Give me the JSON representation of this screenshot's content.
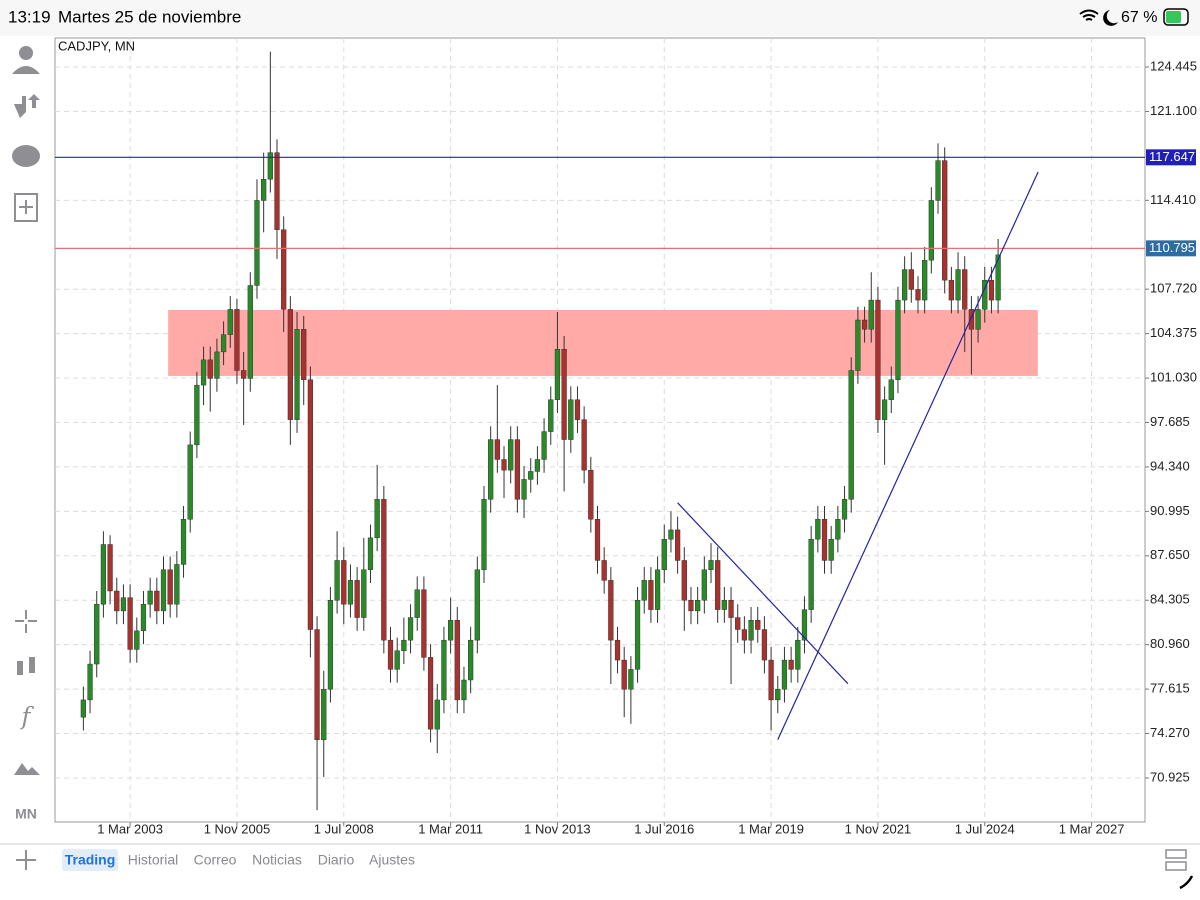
{
  "status_bar": {
    "time": "13:19",
    "date": "Martes 25 de noviembre",
    "battery": "67 %"
  },
  "toolbar": {
    "timeframe": "MN"
  },
  "tabs": [
    "Trading",
    "Historial",
    "Correo",
    "Noticias",
    "Diario",
    "Ajustes"
  ],
  "chart_data": {
    "type": "candlestick",
    "title": "CADJPY, MN",
    "x": [
      0,
      2,
      4,
      6,
      8,
      10,
      12,
      14,
      16,
      18,
      20,
      22,
      24,
      26,
      28,
      30,
      32,
      34,
      36,
      38,
      40,
      42,
      44,
      46,
      48,
      50,
      52,
      54,
      56,
      58,
      60,
      62,
      64,
      66,
      68,
      70,
      72,
      74,
      76,
      78,
      80,
      82,
      84,
      86,
      88,
      90,
      92,
      94,
      96,
      98,
      100,
      102,
      104,
      106,
      108,
      110,
      112,
      114,
      116,
      118,
      120,
      122,
      124,
      126,
      128,
      130,
      132,
      134,
      136,
      138,
      140,
      142,
      144,
      146,
      148,
      150,
      152,
      154,
      156,
      158,
      160,
      162,
      164,
      166,
      168,
      170,
      172,
      174,
      176,
      178,
      180,
      182,
      184,
      186,
      188,
      190,
      192,
      194,
      196,
      198,
      200,
      202,
      204,
      206,
      208,
      210,
      212,
      214,
      216,
      218,
      220,
      222,
      224,
      226,
      228,
      230,
      232,
      234,
      236,
      238,
      240,
      242,
      244,
      246,
      248,
      250,
      252,
      254,
      256,
      258,
      260,
      262,
      264,
      266,
      268,
      270,
      272,
      274
    ],
    "ohlc": [
      [
        75.5,
        77.8,
        74.5,
        76.8
      ],
      [
        76.8,
        80.5,
        75.8,
        79.5
      ],
      [
        79.5,
        85.0,
        78.5,
        84.0
      ],
      [
        84.0,
        89.5,
        83.0,
        88.5
      ],
      [
        88.5,
        89.2,
        84.0,
        85.0
      ],
      [
        85.0,
        86.0,
        82.5,
        83.5
      ],
      [
        83.5,
        85.5,
        82.5,
        84.5
      ],
      [
        84.5,
        85.5,
        79.6,
        80.6
      ],
      [
        80.6,
        83.0,
        79.6,
        82.0
      ],
      [
        82.0,
        85.0,
        81.0,
        84.0
      ],
      [
        84.0,
        86.0,
        83.0,
        85.0
      ],
      [
        85.0,
        86.0,
        82.5,
        83.5
      ],
      [
        83.5,
        87.6,
        82.5,
        86.6
      ],
      [
        86.6,
        87.6,
        83.0,
        84.0
      ],
      [
        84.0,
        88.0,
        83.0,
        87.0
      ],
      [
        87.0,
        91.4,
        86.0,
        90.4
      ],
      [
        90.4,
        97.0,
        89.4,
        96.0
      ],
      [
        96.0,
        101.5,
        95.0,
        100.5
      ],
      [
        100.5,
        103.4,
        99.0,
        102.4
      ],
      [
        102.4,
        103.4,
        98.5,
        101.0
      ],
      [
        101.0,
        104.0,
        100.0,
        103.0
      ],
      [
        103.0,
        105.3,
        102.0,
        104.3
      ],
      [
        104.3,
        107.2,
        103.3,
        106.2
      ],
      [
        106.2,
        107.0,
        100.6,
        101.6
      ],
      [
        101.6,
        103.0,
        97.5,
        101.0
      ],
      [
        101.0,
        109.0,
        100.0,
        108.0
      ],
      [
        108.0,
        116.0,
        107.0,
        114.4
      ],
      [
        114.4,
        118.0,
        112.0,
        116.0
      ],
      [
        116.0,
        125.6,
        115.0,
        118.0
      ],
      [
        118.0,
        119.0,
        110.0,
        112.2
      ],
      [
        112.2,
        113.2,
        104.5,
        106.2
      ],
      [
        106.2,
        107.2,
        96.0,
        97.9
      ],
      [
        97.9,
        106.0,
        96.9,
        104.7
      ],
      [
        104.7,
        105.7,
        99.0,
        100.9
      ],
      [
        100.9,
        101.9,
        80.0,
        82.1
      ],
      [
        82.1,
        83.1,
        68.5,
        73.8
      ],
      [
        73.8,
        79.0,
        71.0,
        77.6
      ],
      [
        77.6,
        85.3,
        76.6,
        84.3
      ],
      [
        84.3,
        89.5,
        83.3,
        87.3
      ],
      [
        87.3,
        88.3,
        82.5,
        84.0
      ],
      [
        84.0,
        87.0,
        83.0,
        85.8
      ],
      [
        85.8,
        86.8,
        82.0,
        83.0
      ],
      [
        83.0,
        89.0,
        82.0,
        86.6
      ],
      [
        86.6,
        90.0,
        85.6,
        89.0
      ],
      [
        89.0,
        94.5,
        88.0,
        91.9
      ],
      [
        91.9,
        92.9,
        80.3,
        81.3
      ],
      [
        81.3,
        82.3,
        78.1,
        79.1
      ],
      [
        79.1,
        81.5,
        78.1,
        80.5
      ],
      [
        80.5,
        83.0,
        79.5,
        81.3
      ],
      [
        81.3,
        84.0,
        80.3,
        83.0
      ],
      [
        83.0,
        86.1,
        82.0,
        85.1
      ],
      [
        85.1,
        86.1,
        79.0,
        80.0
      ],
      [
        80.0,
        81.0,
        73.6,
        74.6
      ],
      [
        74.6,
        78.0,
        72.8,
        76.8
      ],
      [
        76.8,
        82.3,
        75.8,
        81.3
      ],
      [
        81.3,
        84.5,
        80.3,
        82.8
      ],
      [
        82.8,
        83.8,
        75.8,
        76.8
      ],
      [
        76.8,
        79.3,
        75.8,
        78.3
      ],
      [
        78.3,
        82.3,
        77.3,
        81.3
      ],
      [
        81.3,
        87.6,
        80.3,
        86.6
      ],
      [
        86.6,
        92.9,
        85.6,
        91.9
      ],
      [
        91.9,
        97.4,
        90.9,
        96.4
      ],
      [
        96.4,
        100.5,
        93.9,
        94.9
      ],
      [
        94.9,
        95.9,
        92.0,
        94.1
      ],
      [
        94.1,
        97.4,
        93.1,
        96.4
      ],
      [
        96.4,
        97.4,
        90.9,
        91.9
      ],
      [
        91.9,
        94.4,
        90.5,
        93.4
      ],
      [
        93.4,
        95.0,
        92.4,
        94.0
      ],
      [
        94.0,
        95.9,
        93.0,
        94.9
      ],
      [
        94.9,
        98.0,
        93.9,
        97.0
      ],
      [
        97.0,
        100.4,
        96.0,
        99.4
      ],
      [
        99.4,
        106.0,
        98.4,
        103.2
      ],
      [
        103.2,
        104.2,
        92.5,
        96.4
      ],
      [
        96.4,
        100.4,
        95.4,
        99.4
      ],
      [
        99.4,
        100.4,
        96.9,
        97.9
      ],
      [
        97.9,
        98.9,
        93.1,
        94.1
      ],
      [
        94.1,
        95.1,
        89.4,
        90.4
      ],
      [
        90.4,
        91.4,
        86.3,
        87.3
      ],
      [
        87.3,
        88.3,
        84.8,
        85.8
      ],
      [
        85.8,
        86.8,
        78.0,
        81.3
      ],
      [
        81.3,
        82.3,
        78.8,
        79.8
      ],
      [
        79.8,
        80.8,
        75.5,
        77.6
      ],
      [
        77.6,
        80.1,
        75.0,
        79.1
      ],
      [
        79.1,
        85.3,
        78.1,
        84.3
      ],
      [
        84.3,
        86.8,
        83.3,
        85.8
      ],
      [
        85.8,
        86.8,
        82.6,
        83.6
      ],
      [
        83.6,
        87.6,
        82.6,
        86.6
      ],
      [
        86.6,
        90.0,
        85.6,
        88.9
      ],
      [
        88.9,
        91.0,
        87.9,
        89.6
      ],
      [
        89.6,
        90.6,
        86.3,
        87.3
      ],
      [
        87.3,
        88.3,
        82.0,
        84.3
      ],
      [
        84.3,
        85.3,
        82.5,
        83.5
      ],
      [
        83.5,
        85.3,
        82.5,
        84.3
      ],
      [
        84.3,
        87.6,
        83.3,
        86.6
      ],
      [
        86.6,
        88.6,
        85.6,
        87.3
      ],
      [
        87.3,
        88.3,
        82.6,
        83.6
      ],
      [
        83.6,
        85.3,
        82.6,
        84.3
      ],
      [
        84.3,
        85.3,
        78.0,
        83.0
      ],
      [
        83.0,
        84.0,
        81.1,
        82.1
      ],
      [
        82.1,
        83.1,
        80.3,
        81.3
      ],
      [
        81.3,
        83.8,
        80.3,
        82.8
      ],
      [
        82.8,
        83.8,
        81.1,
        82.1
      ],
      [
        82.1,
        83.1,
        78.8,
        79.8
      ],
      [
        79.8,
        80.8,
        74.5,
        76.8
      ],
      [
        76.8,
        78.6,
        75.8,
        77.6
      ],
      [
        77.6,
        80.8,
        76.6,
        79.8
      ],
      [
        79.8,
        80.8,
        78.1,
        79.1
      ],
      [
        79.1,
        82.3,
        78.1,
        81.3
      ],
      [
        81.3,
        84.6,
        80.3,
        83.6
      ],
      [
        83.6,
        89.9,
        82.6,
        88.9
      ],
      [
        88.9,
        91.4,
        87.9,
        90.4
      ],
      [
        90.4,
        91.4,
        86.3,
        87.3
      ],
      [
        87.3,
        89.9,
        86.3,
        88.9
      ],
      [
        88.9,
        91.4,
        87.9,
        90.4
      ],
      [
        90.4,
        92.9,
        89.4,
        91.9
      ],
      [
        91.9,
        102.6,
        90.9,
        101.6
      ],
      [
        101.6,
        106.4,
        100.6,
        105.4
      ],
      [
        105.4,
        106.4,
        103.7,
        104.7
      ],
      [
        104.7,
        109.0,
        103.7,
        106.9
      ],
      [
        106.9,
        107.9,
        96.9,
        97.9
      ],
      [
        97.9,
        100.4,
        94.5,
        99.4
      ],
      [
        99.4,
        101.9,
        98.4,
        100.9
      ],
      [
        100.9,
        107.9,
        99.9,
        106.9
      ],
      [
        106.9,
        110.2,
        105.9,
        109.2
      ],
      [
        109.2,
        110.5,
        106.7,
        107.7
      ],
      [
        107.7,
        108.7,
        105.9,
        106.9
      ],
      [
        106.9,
        110.9,
        105.9,
        109.9
      ],
      [
        109.9,
        115.4,
        108.9,
        114.4
      ],
      [
        114.4,
        118.7,
        113.4,
        117.4
      ],
      [
        117.4,
        118.4,
        107.4,
        108.4
      ],
      [
        108.4,
        109.4,
        105.9,
        106.9
      ],
      [
        106.9,
        110.5,
        105.9,
        109.2
      ],
      [
        109.2,
        110.2,
        103.0,
        106.2
      ],
      [
        106.2,
        107.2,
        101.3,
        104.7
      ],
      [
        104.7,
        107.2,
        103.7,
        106.2
      ],
      [
        106.2,
        109.4,
        105.2,
        108.4
      ],
      [
        108.4,
        109.4,
        105.9,
        106.9
      ],
      [
        106.9,
        111.5,
        105.9,
        110.3
      ]
    ],
    "up_color": "#2a8a2a",
    "down_color": "#a63330",
    "wick_color": "#333333",
    "xlim": [
      -8.5,
      318
    ],
    "xticks": [
      {
        "value": 14,
        "label": "1 Mar 2003"
      },
      {
        "value": 46,
        "label": "1 Nov 2005"
      },
      {
        "value": 78,
        "label": "1 Jul 2008"
      },
      {
        "value": 110,
        "label": "1 Mar 2011"
      },
      {
        "value": 142,
        "label": "1 Nov 2013"
      },
      {
        "value": 174,
        "label": "1 Jul 2016"
      },
      {
        "value": 206,
        "label": "1 Mar 2019"
      },
      {
        "value": 238,
        "label": "1 Nov 2021"
      },
      {
        "value": 270,
        "label": "1 Jul 2024"
      },
      {
        "value": 302,
        "label": "1 Mar 2027"
      }
    ],
    "ylim": [
      67.61,
      126.63
    ],
    "yticks": [
      124.445,
      {
        "value": 121.1,
        "label": "121.100"
      },
      {
        "value": 114.41,
        "label": "114.410"
      },
      {
        "value": 107.72,
        "label": "107.720"
      },
      104.375,
      {
        "value": 101.03,
        "label": "101.030"
      },
      97.685,
      {
        "value": 94.34,
        "label": "94.340"
      },
      90.995,
      {
        "value": 87.65,
        "label": "87.650"
      },
      84.305,
      {
        "value": 80.96,
        "label": "80.960"
      },
      77.615,
      {
        "value": 74.27,
        "label": "74.270"
      },
      70.925
    ],
    "grid": true,
    "hlines": [
      {
        "value": 117.647,
        "color": "#2424b0",
        "label_color": "#2020b8"
      },
      {
        "value": 110.795,
        "color": "#e57070",
        "label_color": "#2e6da4"
      }
    ],
    "zone": {
      "x": [
        25.4,
        285.9
      ],
      "y": [
        101.19,
        106.16
      ],
      "color": "#ffaaa6"
    },
    "trendlines": [
      {
        "x": [
          178,
          229
        ],
        "y": [
          91.64,
          78.02
        ],
        "color": "#2424a0"
      },
      {
        "x": [
          208,
          286
        ],
        "y": [
          73.81,
          116.55
        ],
        "color": "#2424a0"
      }
    ]
  }
}
